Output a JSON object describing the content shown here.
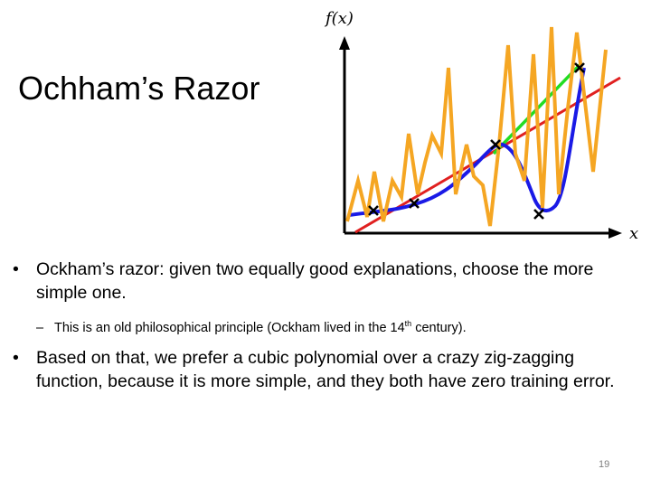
{
  "slide": {
    "title": "Ochham’s Razor",
    "page_number": "19"
  },
  "figure": {
    "y_axis_label": "f(x)",
    "x_axis_label": "x",
    "colors": {
      "axes": "#000000",
      "linear_fit": "#e02020",
      "cubic_fit": "#1a1ae6",
      "interp_segment": "#22dd22",
      "zigzag_fit": "#f5a623",
      "data_points": "#000000"
    }
  },
  "bullets": [
    {
      "mark": "•",
      "text": "Ockham’s razor: given two equally good explanations, choose the more simple one."
    },
    {
      "mark": "•",
      "text": "Based on that, we prefer a cubic polynomial over a crazy zig-zagging function, because it is more simple, and they both have zero training error."
    }
  ],
  "sub_bullet": {
    "mark": "–",
    "text_before": "This is an old philosophical principle  (Ockham lived in the 14",
    "superscript": "th",
    "text_after": " century)."
  }
}
